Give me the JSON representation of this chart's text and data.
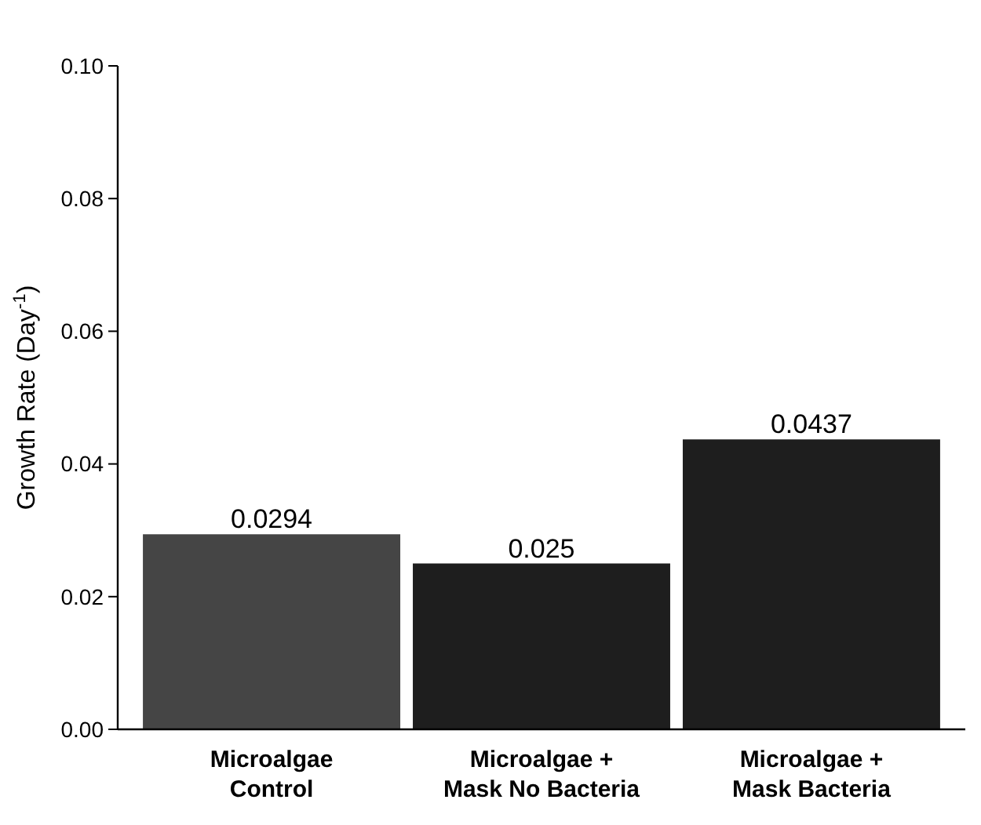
{
  "chart_data": {
    "type": "bar",
    "categories": [
      "Microalgae Control",
      "Microalgae + Mask No Bacteria",
      "Microalgae + Mask Bacteria"
    ],
    "values": [
      0.0294,
      0.025,
      0.0437
    ],
    "colors": [
      "#454545",
      "#1e1e1e",
      "#1e1e1e"
    ],
    "ylabel": "Growth Rate (Day$^{-1}$)",
    "ylim": [
      0,
      0.1
    ],
    "yticks": [
      {
        "value": 0,
        "label": "0.00"
      },
      {
        "value": 0.02,
        "label": "0.02"
      },
      {
        "value": 0.04,
        "label": "0.04"
      },
      {
        "value": 0.06,
        "label": "0.06"
      },
      {
        "value": 0.08,
        "label": "0.08"
      },
      {
        "value": 0.1,
        "label": "0.10"
      }
    ],
    "data_labels": true,
    "grid": false
  }
}
